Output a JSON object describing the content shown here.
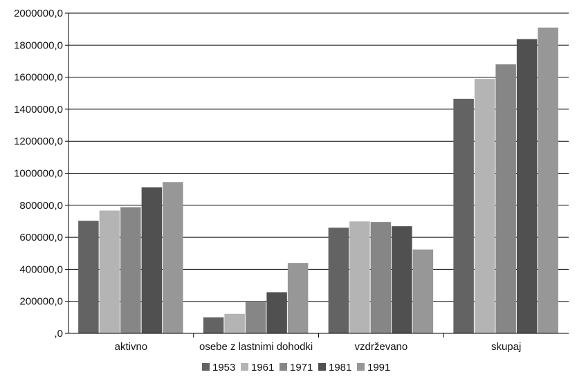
{
  "chart_data": {
    "type": "bar",
    "categories": [
      "aktivno",
      "osebe z lastnimi dohodki",
      "vzdrževano",
      "skupaj"
    ],
    "series": [
      {
        "name": "1953",
        "color": "#636363",
        "values": [
          703000,
          100000,
          660000,
          1465000
        ]
      },
      {
        "name": "1961",
        "color": "#b4b4b4",
        "values": [
          767000,
          122000,
          699000,
          1589000
        ]
      },
      {
        "name": "1971",
        "color": "#868686",
        "values": [
          788000,
          195000,
          695000,
          1680000
        ]
      },
      {
        "name": "1981",
        "color": "#505050",
        "values": [
          912000,
          257000,
          669000,
          1838000
        ]
      },
      {
        "name": "1991",
        "color": "#979797",
        "values": [
          945000,
          440000,
          524000,
          1910000
        ]
      }
    ],
    "ylim": [
      0,
      2000000
    ],
    "yticks": [
      {
        "value": 0,
        "label": ",0"
      },
      {
        "value": 200000,
        "label": "200000,0"
      },
      {
        "value": 400000,
        "label": "400000,0"
      },
      {
        "value": 600000,
        "label": "600000,0"
      },
      {
        "value": 800000,
        "label": "800000,0"
      },
      {
        "value": 1000000,
        "label": "1000000,0"
      },
      {
        "value": 1200000,
        "label": "1200000,0"
      },
      {
        "value": 1400000,
        "label": "1400000,0"
      },
      {
        "value": 1600000,
        "label": "1600000,0"
      },
      {
        "value": 1800000,
        "label": "1800000,0"
      },
      {
        "value": 2000000,
        "label": "2000000,0"
      }
    ],
    "grid": true,
    "legend_position": "bottom"
  }
}
